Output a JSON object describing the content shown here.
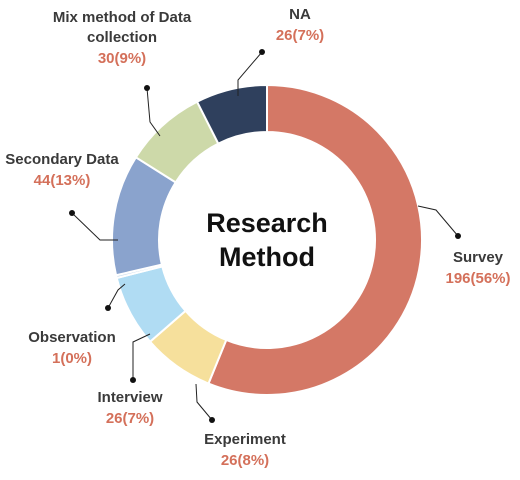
{
  "chart_data": {
    "type": "donut",
    "title": "Research Method",
    "categories": [
      "Survey",
      "Experiment",
      "Interview",
      "Observation",
      "Secondary Data",
      "Mix method of Data collection",
      "NA"
    ],
    "values": [
      196,
      26,
      26,
      1,
      44,
      30,
      26
    ],
    "value_labels": [
      "196(56%)",
      "26(8%)",
      "26(7%)",
      "1(0%)",
      "44(13%)",
      "30(9%)",
      "26(7%)"
    ],
    "colors": [
      "#d47866",
      "#f6e09c",
      "#b0dcf3",
      "#c9dcec",
      "#8aa3cd",
      "#cdd9a9",
      "#2f405d"
    ]
  }
}
